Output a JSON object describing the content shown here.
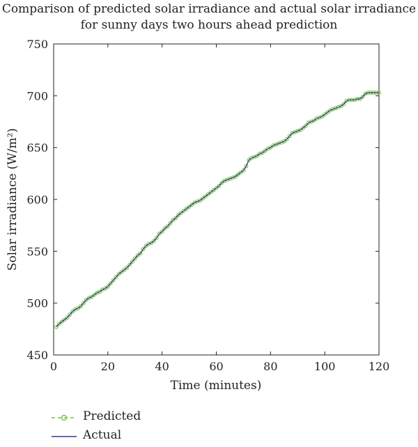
{
  "chart_data": {
    "type": "line",
    "title": [
      "Comparison of predicted solar irradiance and actual solar irradiance",
      "for sunny days two hours ahead prediction"
    ],
    "xlabel": "Time (minutes)",
    "ylabel": "Solar irradiance (W/m²)",
    "xlim": [
      0,
      120
    ],
    "ylim": [
      450,
      750
    ],
    "xticks": [
      0,
      20,
      40,
      60,
      80,
      100,
      120
    ],
    "yticks": [
      450,
      500,
      550,
      600,
      650,
      700,
      750
    ],
    "grid": false,
    "legend_position": "bottom-left, below plot",
    "series": [
      {
        "name": "Predicted",
        "color": "#7dc242",
        "marker": "circle",
        "linestyle": "dashed",
        "x": [
          1,
          2,
          3,
          4,
          5,
          6,
          7,
          8,
          9,
          10,
          11,
          12,
          13,
          14,
          15,
          16,
          17,
          18,
          19,
          20,
          21,
          22,
          23,
          24,
          25,
          26,
          27,
          28,
          29,
          30,
          31,
          32,
          33,
          34,
          35,
          36,
          37,
          38,
          39,
          40,
          41,
          42,
          43,
          44,
          45,
          46,
          47,
          48,
          49,
          50,
          51,
          52,
          53,
          54,
          55,
          56,
          57,
          58,
          59,
          60,
          61,
          62,
          63,
          64,
          65,
          66,
          67,
          68,
          69,
          70,
          71,
          72,
          73,
          74,
          75,
          76,
          77,
          78,
          79,
          80,
          81,
          82,
          83,
          84,
          85,
          86,
          87,
          88,
          89,
          90,
          91,
          92,
          93,
          94,
          95,
          96,
          97,
          98,
          99,
          100,
          101,
          102,
          103,
          104,
          105,
          106,
          107,
          108,
          109,
          110,
          111,
          112,
          113,
          114,
          115,
          116,
          117,
          118,
          119,
          120
        ],
        "values": [
          477,
          480,
          482,
          484,
          486,
          489,
          492,
          494,
          495,
          497,
          500,
          503,
          505,
          506,
          508,
          510,
          511,
          513,
          514,
          516,
          519,
          522,
          525,
          528,
          530,
          532,
          534,
          537,
          540,
          543,
          546,
          548,
          552,
          555,
          557,
          558,
          560,
          563,
          567,
          569,
          572,
          574,
          577,
          580,
          582,
          585,
          587,
          589,
          591,
          593,
          595,
          597,
          598,
          599,
          601,
          603,
          605,
          607,
          609,
          611,
          613,
          616,
          618,
          619,
          620,
          621,
          622,
          624,
          626,
          628,
          632,
          638,
          640,
          641,
          642,
          644,
          645,
          647,
          649,
          650,
          652,
          653,
          654,
          655,
          656,
          658,
          661,
          664,
          665,
          666,
          667,
          669,
          671,
          674,
          675,
          676,
          678,
          679,
          680,
          682,
          684,
          686,
          687,
          688,
          689,
          690,
          692,
          695,
          696,
          696,
          696,
          697,
          697,
          699,
          702,
          703,
          703,
          703,
          703,
          703
        ],
        "x_offset_note": ""
      },
      {
        "name": "Actual",
        "color": "#2a3f8f",
        "marker": "none",
        "linestyle": "solid"
      }
    ]
  }
}
